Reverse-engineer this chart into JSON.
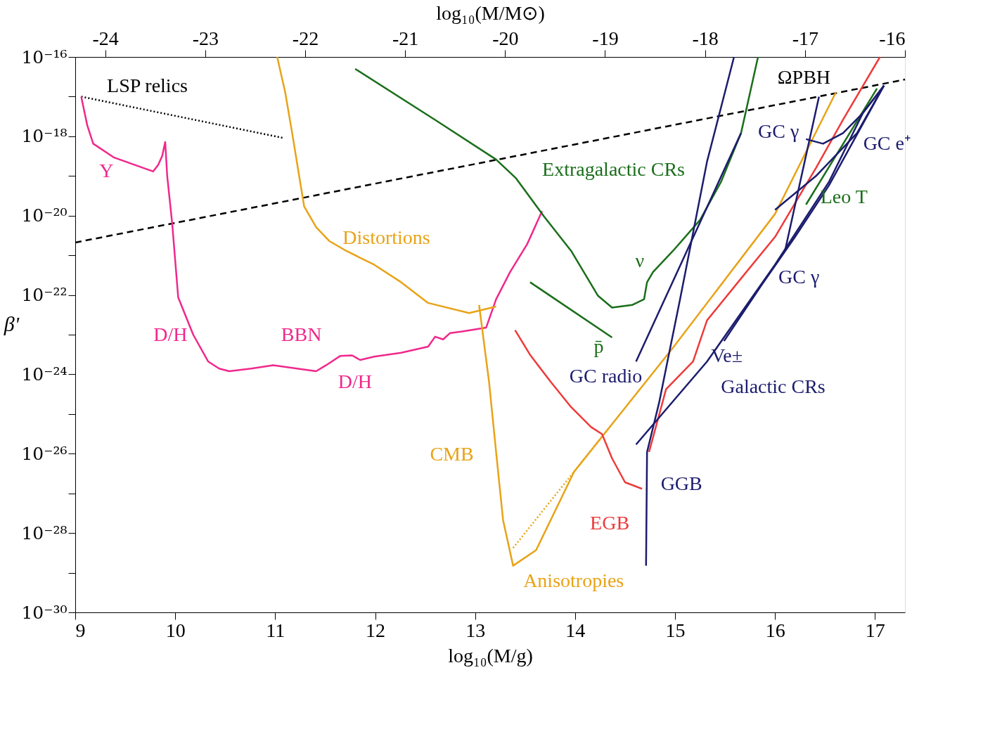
{
  "chart_data": {
    "type": "line",
    "xlabel": "log₁₀(M/g)",
    "x2label": "log₁₀(M/M⊙)",
    "ylabel": "β'",
    "log": "y",
    "grid": false,
    "xlim": [
      9,
      17.3
    ],
    "xticks": [
      9,
      10,
      11,
      12,
      13,
      14,
      15,
      16,
      17
    ],
    "x2lim": [
      -24.3,
      -16.0
    ],
    "x2ticks": [
      -24,
      -23,
      -22,
      -21,
      -20,
      -19,
      -18,
      -17,
      -16
    ],
    "ylim": [
      1e-30,
      1e-16
    ],
    "yticks": [
      {
        "value": 1e-16,
        "label": "10⁻¹⁶"
      },
      {
        "value": 1e-17,
        "label": null
      },
      {
        "value": 1e-18,
        "label": "10⁻¹⁸"
      },
      {
        "value": 1e-19,
        "label": null
      },
      {
        "value": 1e-20,
        "label": "10⁻²⁰"
      },
      {
        "value": 1e-21,
        "label": null
      },
      {
        "value": 1e-22,
        "label": "10⁻²²"
      },
      {
        "value": 1e-23,
        "label": null
      },
      {
        "value": 1e-24,
        "label": "10⁻²⁴"
      },
      {
        "value": 1e-25,
        "label": null
      },
      {
        "value": 1e-26,
        "label": "10⁻²⁶"
      },
      {
        "value": 1e-27,
        "label": null
      },
      {
        "value": 1e-28,
        "label": "10⁻²⁸"
      },
      {
        "value": 1e-29,
        "label": null
      },
      {
        "value": 1e-30,
        "label": "10⁻³⁰"
      }
    ],
    "series": [
      {
        "color": "#000000",
        "line_style": "dashed",
        "x": [
          9,
          16.29,
          17.3
        ],
        "values": [
          2.1e-21,
          8.5e-18,
          2.7e-17
        ]
      },
      {
        "color": "#000000",
        "line_style": "dotted",
        "x": [
          9.06,
          11.09
        ],
        "values": [
          1e-17,
          9e-19
        ]
      },
      {
        "color": "#f0288c",
        "line_style": "solid",
        "x": [
          9.06,
          9.12,
          9.18,
          9.39,
          9.78,
          9.83,
          9.87,
          9.9,
          9.92,
          9.97,
          10.03,
          10.18,
          10.33,
          10.44,
          10.54,
          10.76,
          10.98,
          11.41,
          11.51,
          11.65,
          11.77,
          11.85,
          11.99,
          12.26,
          12.53,
          12.6,
          12.68,
          12.75,
          12.87,
          13.11,
          13.21,
          13.35,
          13.52,
          13.67
        ],
        "values": [
          1e-17,
          1.9e-18,
          6.5e-19,
          2.9e-19,
          1.3e-19,
          1.9e-19,
          3.2e-19,
          7.2e-19,
          1e-19,
          6.3e-21,
          8.7e-23,
          1e-23,
          2.1e-24,
          1.4e-24,
          1.2e-24,
          1.4e-24,
          1.7e-24,
          1.2e-24,
          1.7e-24,
          2.9e-24,
          3e-24,
          2.3e-24,
          2.8e-24,
          3.5e-24,
          5e-24,
          8.9e-24,
          7.6e-24,
          1.1e-23,
          1.2e-23,
          1.5e-23,
          7.8e-23,
          3.8e-22,
          1.9e-21,
          1.3e-20
        ]
      },
      {
        "color": "#e8a317",
        "line_style": "solid",
        "x": [
          11.02,
          11.1,
          11.17,
          11.24,
          11.29,
          11.41,
          11.54,
          11.71,
          11.99,
          12.26,
          12.53,
          12.94,
          13.21
        ],
        "values": [
          1e-16,
          1.3e-17,
          1.2e-18,
          1e-19,
          1.7e-20,
          5.1e-21,
          2.3e-21,
          1.3e-21,
          5.8e-22,
          2.1e-22,
          6.3e-23,
          3.5e-23,
          5.1e-23
        ]
      },
      {
        "color": "#e8a317",
        "line_style": "solid",
        "x": [
          13.04,
          13.14,
          13.21,
          13.28,
          13.38,
          13.61,
          13.99,
          14.98,
          16.0,
          16.61
        ],
        "values": [
          5.6e-23,
          6.3e-25,
          1.1e-26,
          2.1e-28,
          1.5e-29,
          3.7e-29,
          3.5e-27,
          4.7e-24,
          1.1e-20,
          1.3e-17
        ]
      },
      {
        "color": "#e8a317",
        "line_style": "dotted",
        "x": [
          13.38,
          14.37
        ],
        "values": [
          4.2e-29,
          5.6e-26
        ]
      },
      {
        "color": "#1a6e1a",
        "line_style": "solid",
        "x": [
          11.8,
          12.6,
          13.21,
          13.41,
          13.69,
          13.96,
          14.23,
          14.37,
          14.57,
          14.69,
          14.72,
          14.78,
          14.98,
          15.25,
          15.46,
          15.66,
          15.83
        ],
        "values": [
          5e-17,
          2.6e-18,
          2.6e-19,
          8.7e-20,
          9.5e-21,
          1.3e-21,
          9.5e-23,
          4.8e-23,
          5.6e-23,
          7.8e-23,
          2.1e-22,
          3.8e-22,
          1.3e-21,
          7.8e-21,
          7.1e-20,
          1.2e-18,
          1e-16
        ]
      },
      {
        "color": "#1a6e1a",
        "line_style": "solid",
        "x": [
          13.55,
          14.37
        ],
        "values": [
          2.1e-22,
          8.5e-24
        ]
      },
      {
        "color": "#1a6e1a",
        "line_style": "solid",
        "x": [
          16.31,
          17.02
        ],
        "values": [
          1.9e-20,
          1.6e-17
        ]
      },
      {
        "color": "#ee3b3b",
        "line_style": "solid",
        "x": [
          13.4,
          13.55,
          13.76,
          13.96,
          14.16,
          14.27,
          14.37,
          14.5,
          14.67
        ],
        "values": [
          1.3e-23,
          3.1e-24,
          6.3e-25,
          1.5e-25,
          4.7e-26,
          3.1e-26,
          7.6e-27,
          1.9e-27,
          1.3e-27
        ]
      },
      {
        "color": "#ee3b3b",
        "line_style": "solid",
        "x": [
          14.74,
          14.91,
          15.18,
          15.32,
          15.66,
          16.0,
          16.41,
          16.68,
          17.05
        ],
        "values": [
          1.1e-26,
          4.2e-25,
          2.1e-24,
          2.3e-23,
          2.6e-22,
          2.9e-21,
          1.6e-19,
          2.6e-18,
          1e-16
        ]
      },
      {
        "color": "#1c1c6e",
        "line_style": "solid",
        "x": [
          14.61,
          15.66
        ],
        "values": [
          2.1e-24,
          1.2e-18
        ]
      },
      {
        "color": "#1c1c6e",
        "line_style": "solid",
        "x": [
          14.71,
          14.72,
          14.84,
          15.05,
          15.32,
          15.59
        ],
        "values": [
          1.5e-29,
          1.1e-26,
          1.9e-25,
          7.8e-23,
          2.3e-19,
          1e-16
        ]
      },
      {
        "color": "#1c1c6e",
        "line_style": "solid",
        "x": [
          14.61,
          15.32,
          16.0,
          16.54,
          16.88,
          17.09
        ],
        "values": [
          1.7e-26,
          2.1e-24,
          5.8e-22,
          7.1e-20,
          3.9e-18,
          1.9e-17
        ]
      },
      {
        "color": "#1c1c6e",
        "line_style": "solid",
        "x": [
          15.49,
          15.86,
          16.2,
          16.54,
          17.09
        ],
        "values": [
          6.9e-24,
          1.7e-22,
          2.9e-21,
          5.8e-20,
          1.9e-17
        ]
      },
      {
        "color": "#1c1c6e",
        "line_style": "solid",
        "x": [
          16.0,
          16.41,
          16.82,
          17.09
        ],
        "values": [
          1.4e-20,
          1e-19,
          1.2e-18,
          1.9e-17
        ]
      },
      {
        "color": "#1c1c6e",
        "line_style": "solid",
        "x": [
          16.31,
          16.48,
          16.68,
          16.88,
          17.09
        ],
        "values": [
          8.5e-19,
          6.5e-19,
          1.2e-18,
          3.9e-18,
          1.9e-17
        ]
      },
      {
        "color": "#1c1c6e",
        "line_style": "solid",
        "x": [
          16.1,
          16.44
        ],
        "values": [
          1.3e-21,
          1e-17
        ]
      }
    ],
    "annotations": [
      {
        "text": "LSP relics",
        "x": 9.06,
        "y": 1e-17
      },
      {
        "text": "ΩPBH",
        "x": 16.29,
        "y": 8.5e-18
      },
      {
        "text": "Y",
        "x": 9.39,
        "y": 2.9e-19
      },
      {
        "text": "D/H",
        "x": 10.03,
        "y": 8.7e-23
      },
      {
        "text": "BBN",
        "x": 11.41,
        "y": 1.2e-24
      },
      {
        "text": "D/H",
        "x": 11.77,
        "y": 3e-24
      },
      {
        "text": "Distortions",
        "x": 12.26,
        "y": 2.1e-22
      },
      {
        "text": "CMB",
        "x": 13.21,
        "y": 1.1e-26
      },
      {
        "text": "Anisotropies",
        "x": 13.38,
        "y": 1.5e-29
      },
      {
        "text": "Extragalactic CRs",
        "x": 13.21,
        "y": 2.6e-19
      },
      {
        "text": "ν",
        "x": 14.69,
        "y": 7.8e-23
      },
      {
        "text": "p̄",
        "x": 14.37,
        "y": 8.5e-24
      },
      {
        "text": "Leo T",
        "x": 16.31,
        "y": 1.9e-20
      },
      {
        "text": "GC radio",
        "x": 14.61,
        "y": 2.1e-24
      },
      {
        "text": "GGB",
        "x": 14.72,
        "y": 1.1e-26
      },
      {
        "text": "EGB",
        "x": 14.67,
        "y": 1.3e-27
      },
      {
        "text": "Galactic CRs",
        "x": 15.32,
        "y": 2.1e-24
      },
      {
        "text": "Ve±",
        "x": 15.49,
        "y": 6.9e-24
      },
      {
        "text": "GC γ",
        "x": 16.0,
        "y": 5.8e-22
      },
      {
        "text": "GC γ",
        "x": 16.31,
        "y": 8.5e-19
      },
      {
        "text": "GC e⁺",
        "x": 16.88,
        "y": 3.9e-18
      }
    ]
  }
}
